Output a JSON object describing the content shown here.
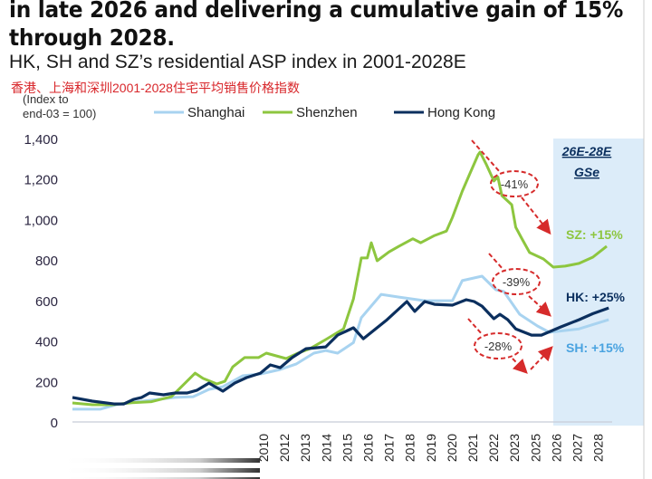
{
  "header": {
    "title_line1": "in late 2026 and delivering a cumulative gain of 15%",
    "title_line2": "through 2028.",
    "subtitle": "HK, SH and SZ’s residential ASP index in 2001-2028E",
    "subtitle_cn": "香港、上海和深圳2001-2028住宅平均销售价格指数"
  },
  "chart_data": {
    "type": "line",
    "ylabel": "(Index to end-03 = 100)",
    "ylabel_lines": [
      "(Index to",
      "end-03 = 100)"
    ],
    "ylim": [
      0,
      1400
    ],
    "yticks": [
      0,
      200,
      400,
      600,
      800,
      1000,
      1200,
      1400
    ],
    "ytick_labels": [
      "0",
      "200",
      "400",
      "600",
      "800",
      "1,000",
      "1,200",
      "1,400"
    ],
    "xlim": [
      2001,
      2028
    ],
    "xtick_labels": [
      "2010",
      "2012",
      "2013",
      "2014",
      "2015",
      "2016",
      "2017",
      "2018",
      "2019",
      "2020",
      "2021",
      "2022",
      "2023",
      "2025",
      "2026",
      "2027",
      "2028"
    ],
    "grid": false,
    "legend_position": "top",
    "forecast_region": {
      "from": 2025.3,
      "label_line1": "26E-28E",
      "label_line2": "GSe",
      "color": "#dcecf9"
    },
    "series": [
      {
        "name": "Shanghai",
        "color": "#a8d3f0",
        "x": [
          2001.0,
          2002.4,
          2003.2,
          2004.1,
          2006.2,
          2007.1,
          2007.9,
          2008.6,
          2009.6,
          2010.5,
          2011.5,
          2012.3,
          2013.2,
          2013.8,
          2014.4,
          2015.2,
          2015.6,
          2016.6,
          2017.5,
          2018.8,
          2020.2,
          2020.7,
          2021.7,
          2022.4,
          2022.8,
          2023.6,
          2024.5,
          2025.1,
          2026.6,
          2028.1
        ],
        "y": [
          63,
          63,
          85,
          98,
          121,
          125,
          161,
          174,
          228,
          237,
          259,
          286,
          340,
          353,
          340,
          392,
          515,
          630,
          617,
          599,
          599,
          698,
          720,
          653,
          644,
          532,
          474,
          443,
          460,
          505
        ]
      },
      {
        "name": "Shenzhen",
        "color": "#8dc63f",
        "x": [
          2001.0,
          2002.0,
          2003.0,
          2004.0,
          2005.0,
          2006.0,
          2007.2,
          2007.6,
          2008.3,
          2008.7,
          2009.1,
          2009.7,
          2010.4,
          2010.8,
          2011.8,
          2012.4,
          2013.0,
          2013.8,
          2014.7,
          2015.2,
          2015.6,
          2015.9,
          2016.1,
          2016.4,
          2017.0,
          2017.5,
          2018.2,
          2018.6,
          2019.3,
          2019.9,
          2020.2,
          2020.7,
          2021.1,
          2021.5,
          2021.6,
          2021.9,
          2022.3,
          2022.5,
          2022.7,
          2023.2,
          2023.4,
          2023.7,
          2024.1,
          2024.3,
          2024.8,
          2025.3,
          2025.9,
          2026.6,
          2027.3,
          2028.0
        ],
        "y": [
          94,
          85,
          85,
          95,
          100,
          125,
          241,
          215,
          188,
          201,
          272,
          318,
          318,
          340,
          313,
          340,
          362,
          407,
          460,
          608,
          810,
          810,
          885,
          796,
          840,
          868,
          905,
          885,
          921,
          943,
          1010,
          1140,
          1230,
          1320,
          1333,
          1275,
          1190,
          1210,
          1118,
          1073,
          962,
          908,
          837,
          828,
          805,
          765,
          770,
          783,
          814,
          868
        ]
      },
      {
        "name": "Hong Kong",
        "color": "#0b2f5e",
        "x": [
          2001.0,
          2002.0,
          2003.1,
          2003.6,
          2004.1,
          2004.5,
          2004.9,
          2005.6,
          2006.2,
          2006.8,
          2007.3,
          2007.9,
          2008.6,
          2009.2,
          2009.8,
          2010.5,
          2011.0,
          2011.5,
          2012.1,
          2012.8,
          2013.8,
          2014.4,
          2015.2,
          2015.7,
          2016.9,
          2017.9,
          2018.3,
          2018.8,
          2019.3,
          2020.2,
          2020.9,
          2021.3,
          2021.7,
          2022.3,
          2022.6,
          2023.0,
          2023.4,
          2024.2,
          2024.7,
          2025.7,
          2026.6,
          2027.3,
          2028.1
        ],
        "y": [
          121,
          103,
          89,
          89,
          112,
          121,
          143,
          134,
          143,
          143,
          157,
          192,
          152,
          192,
          219,
          241,
          282,
          268,
          318,
          362,
          371,
          429,
          465,
          411,
          505,
          595,
          546,
          595,
          581,
          577,
          604,
          595,
          572,
          510,
          532,
          505,
          460,
          429,
          429,
          470,
          505,
          535,
          563
        ]
      }
    ],
    "annotations": {
      "declines": [
        "-41%",
        "-39%",
        "-28%"
      ],
      "forecasts": [
        {
          "label": "SZ:  +15%",
          "color": "#8dc63f"
        },
        {
          "label": "HK:  +25%",
          "color": "#0b2f5e"
        },
        {
          "label": "SH:  +15%",
          "color": "#4aa3e0"
        }
      ],
      "annotation_color": "#d62b2b"
    }
  }
}
